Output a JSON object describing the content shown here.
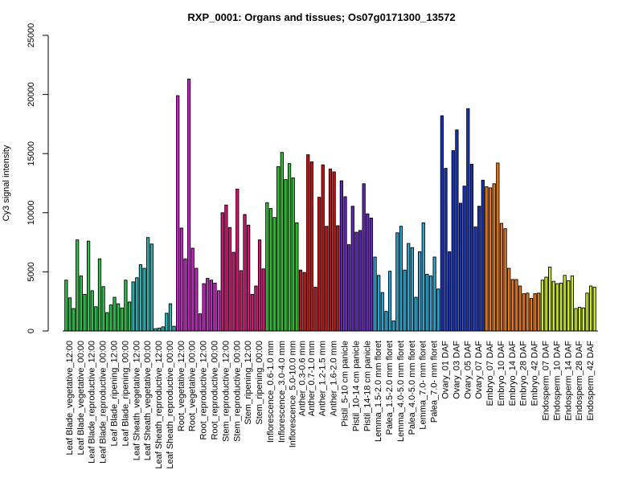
{
  "chart_data": {
    "type": "bar",
    "title": "RXP_0001: Organs and tissues; Os07g0171300_13572",
    "ylabel": "Cy3 signal intensity",
    "xlabel": "",
    "ylim": [
      0,
      25000
    ],
    "yticks": [
      0,
      5000,
      10000,
      15000,
      20000,
      25000
    ],
    "grid": false,
    "bar_edge_color": "#000000",
    "groups": [
      {
        "name": "Leaf Blade_vegetative_12:00",
        "color": "#22cc44",
        "values": [
          4300,
          2800,
          1900
        ]
      },
      {
        "name": "Leaf Blade_vegetative_00:00",
        "color": "#22cc44",
        "values": [
          7700,
          4650,
          3100
        ]
      },
      {
        "name": "Leaf Blade_reproductive_12:00",
        "color": "#22cc44",
        "values": [
          7600,
          3400,
          2050
        ]
      },
      {
        "name": "Leaf Blade_reproductive_00:00",
        "color": "#22cc44",
        "values": [
          6100,
          3750,
          1550
        ]
      },
      {
        "name": "Leaf Blade_ripening_12:00",
        "color": "#22cc44",
        "values": [
          2200,
          2850,
          2300
        ]
      },
      {
        "name": "Leaf Blade_ripening_00:00",
        "color": "#22cc44",
        "values": [
          1950,
          4300,
          2450
        ]
      },
      {
        "name": "Leaf Sheath_vegetative_12:00",
        "color": "#22bbbb",
        "values": [
          4150,
          4500,
          5600
        ]
      },
      {
        "name": "Leaf Sheath_vegetative_00:00",
        "color": "#22bbbb",
        "values": [
          5300,
          7900,
          7350
        ]
      },
      {
        "name": "Leaf Sheath_reproductive_12:00",
        "color": "#22bbbb",
        "values": [
          200,
          250,
          350
        ]
      },
      {
        "name": "Leaf Sheath_reproductive_00:00",
        "color": "#22bbbb",
        "values": [
          1500,
          2300,
          400
        ]
      },
      {
        "name": "Root_vegetative_12:00",
        "color": "#cc22cc",
        "values": [
          19900,
          8700,
          6100
        ]
      },
      {
        "name": "Root_vegetative_00:00",
        "color": "#cc22cc",
        "values": [
          21300,
          7000,
          5300
        ]
      },
      {
        "name": "Root_reproductive_12:00",
        "color": "#cc22cc",
        "values": [
          1450,
          4000,
          4450
        ]
      },
      {
        "name": "Root_reproductive_00:00",
        "color": "#cc22cc",
        "values": [
          4300,
          4050,
          3400
        ]
      },
      {
        "name": "Stem_reproductive_12:00",
        "color": "#dd1177",
        "values": [
          10000,
          10650,
          8750
        ]
      },
      {
        "name": "Stem_reproductive_00:00",
        "color": "#dd1177",
        "values": [
          6650,
          12000,
          5100
        ]
      },
      {
        "name": "Stem_ripening_12:00",
        "color": "#dd1177",
        "values": [
          9850,
          8950,
          3100
        ]
      },
      {
        "name": "Stem_ripening_00:00",
        "color": "#dd1177",
        "values": [
          3800,
          7700,
          5250
        ]
      },
      {
        "name": "Inflorescence_0.6-1.0 mm",
        "color": "#22cc22",
        "values": [
          10850,
          10350,
          9600
        ]
      },
      {
        "name": "Inflorescence_3.0-4.0 mm",
        "color": "#22cc22",
        "values": [
          13900,
          15100,
          12800
        ]
      },
      {
        "name": "Inflorescence_5.0-10.0 mm",
        "color": "#22cc22",
        "values": [
          14150,
          12950,
          9150
        ]
      },
      {
        "name": "Anther_0.3-0.6 mm",
        "color": "#cc1111",
        "values": [
          5150,
          4950
        ]
      },
      {
        "name": "Anther_0.7-1.0 mm",
        "color": "#cc1111",
        "values": [
          14900,
          14300,
          3700
        ]
      },
      {
        "name": "Anther_1.2-1.5 mm",
        "color": "#cc1111",
        "values": [
          11300,
          14050,
          8850
        ]
      },
      {
        "name": "Anther_1.6-2.0 mm",
        "color": "#cc1111",
        "values": [
          13700,
          13450,
          8900
        ]
      },
      {
        "name": "Pistil_5-10 cm panicle",
        "color": "#6622cc",
        "values": [
          12700,
          11350,
          7300
        ]
      },
      {
        "name": "Pistil_10-14 cm panicle",
        "color": "#6622cc",
        "values": [
          10550,
          8350,
          8500
        ]
      },
      {
        "name": "Pistil_14-18 cm panicle",
        "color": "#6622cc",
        "values": [
          12450,
          9900,
          9550
        ]
      },
      {
        "name": "Lemma_1.5-2.0 mm floret",
        "color": "#22aadd",
        "values": [
          6250,
          4700,
          3250
        ]
      },
      {
        "name": "Palea_1.5-2.0 mm floret",
        "color": "#22aadd",
        "values": [
          1650,
          5050,
          850
        ]
      },
      {
        "name": "Lemma_4.0-5.0 mm floret",
        "color": "#22aadd",
        "values": [
          8300,
          8850,
          5150
        ]
      },
      {
        "name": "Palea_4.0-5.0 mm floret",
        "color": "#22aadd",
        "values": [
          7400,
          7050,
          2850
        ]
      },
      {
        "name": "Lemma_7.0- mm floret",
        "color": "#22aadd",
        "values": [
          6700,
          9150,
          4800
        ]
      },
      {
        "name": "Palea_7.0- mm floret",
        "color": "#22aadd",
        "values": [
          4650,
          6250,
          3550
        ]
      },
      {
        "name": "Ovary_01 DAF",
        "color": "#1133cc",
        "values": [
          18200,
          13750,
          6700
        ]
      },
      {
        "name": "Ovary_03 DAF",
        "color": "#1133cc",
        "values": [
          15250,
          17000,
          10800
        ]
      },
      {
        "name": "Ovary_05 DAF",
        "color": "#1133cc",
        "values": [
          12250,
          18800,
          14100
        ]
      },
      {
        "name": "Ovary_07 DAF",
        "color": "#1133cc",
        "values": [
          8800,
          10550,
          12750
        ]
      },
      {
        "name": "Embryo_07 DAF",
        "color": "#ee7711",
        "values": [
          12200,
          12100,
          12450
        ]
      },
      {
        "name": "Embryo_10 DAF",
        "color": "#ee7711",
        "values": [
          14200,
          9100,
          8650
        ]
      },
      {
        "name": "Embryo_14 DAF",
        "color": "#ee7711",
        "values": [
          5300,
          4350,
          4350
        ]
      },
      {
        "name": "Embryo_28 DAF",
        "color": "#ee7711",
        "values": [
          3800,
          3150,
          3200
        ]
      },
      {
        "name": "Embryo_42 DAF",
        "color": "#ee7711",
        "values": [
          2750,
          3150,
          3200
        ]
      },
      {
        "name": "Endosperm_07 DAF",
        "color": "#ccee22",
        "values": [
          4300,
          4550,
          5400
        ]
      },
      {
        "name": "Endosperm_10 DAF",
        "color": "#ccee22",
        "values": [
          4200,
          4000,
          4050
        ]
      },
      {
        "name": "Endosperm_14 DAF",
        "color": "#ccee22",
        "values": [
          4700,
          4250,
          4650
        ]
      },
      {
        "name": "Endosperm_28 DAF",
        "color": "#ccee22",
        "values": [
          1900,
          2000,
          1950
        ]
      },
      {
        "name": "Endosperm_42 DAF",
        "color": "#ccee22",
        "values": [
          3200,
          3800,
          3700
        ]
      }
    ]
  }
}
